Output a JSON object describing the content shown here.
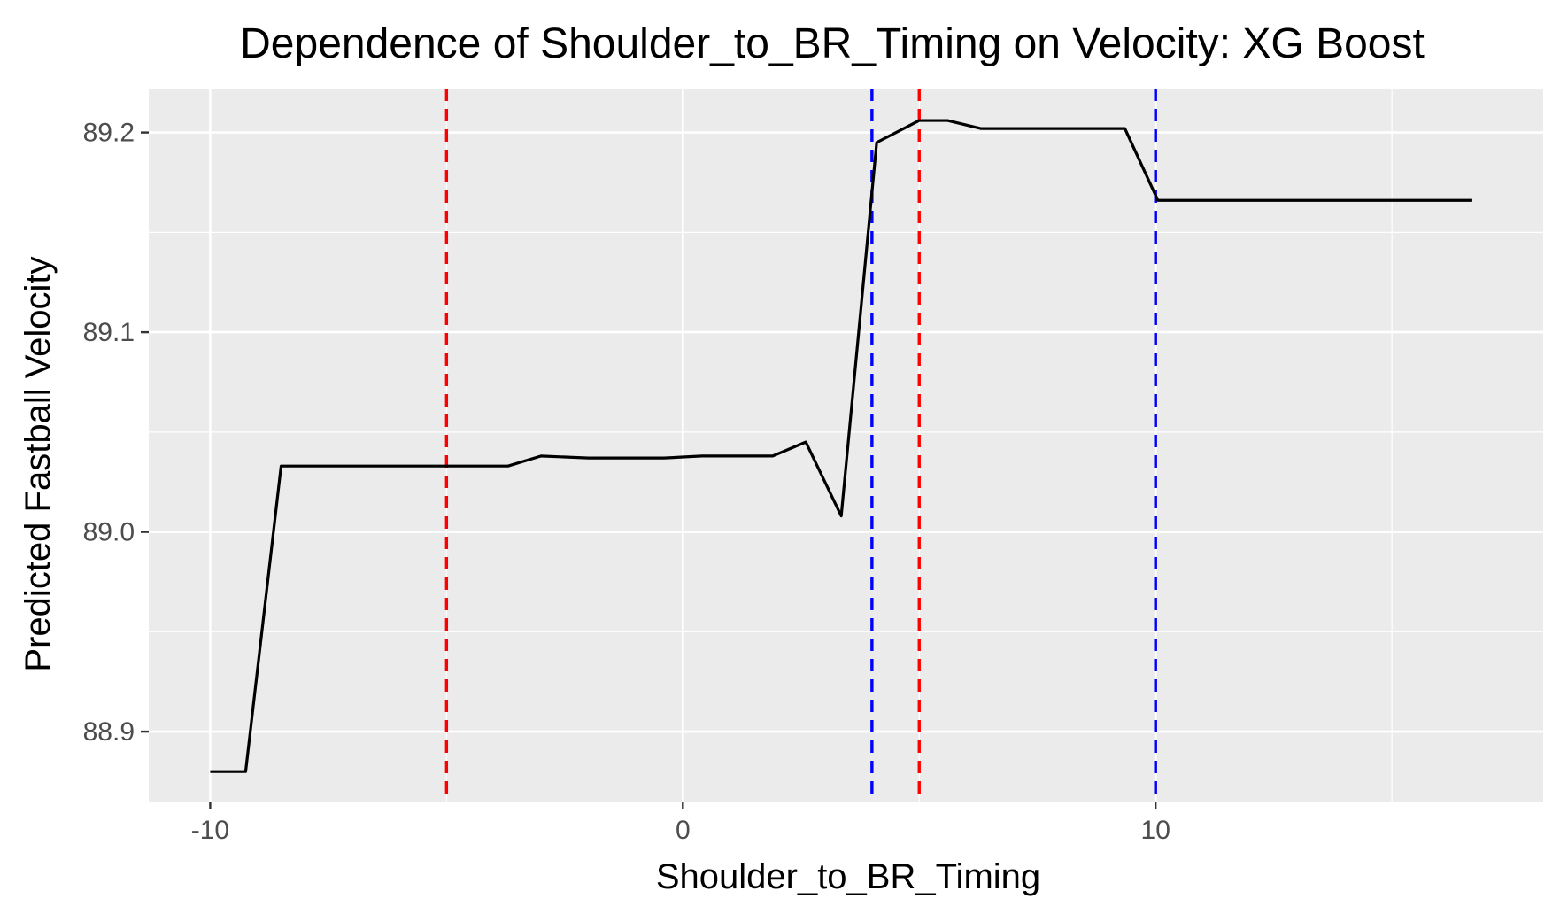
{
  "chart_data": {
    "type": "line",
    "title": "Dependence of Shoulder_to_BR_Timing on Velocity: XG Boost",
    "xlabel": "Shoulder_to_BR_Timing",
    "ylabel": "Predicted Fastball Velocity",
    "xlim": [
      -11.3,
      18.2
    ],
    "ylim": [
      88.865,
      89.222
    ],
    "x_ticks": [
      -10,
      0,
      10
    ],
    "x_tick_labels": [
      "-10",
      "0",
      "10"
    ],
    "x_minor_ticks": [
      -5,
      5,
      15
    ],
    "y_ticks": [
      88.9,
      89.0,
      89.1,
      89.2
    ],
    "y_tick_labels": [
      "88.9",
      "89.0",
      "89.1",
      "89.2"
    ],
    "y_minor_ticks": [
      88.95,
      89.05,
      89.15
    ],
    "grid": true,
    "series": [
      {
        "color": "#000000",
        "x": [
          -10,
          -9.25,
          -8.5,
          -3.7,
          -3.0,
          -2.0,
          -0.4,
          0.4,
          1.9,
          2.6,
          3.35,
          4.1,
          5.0,
          5.6,
          6.3,
          9.35,
          10.05,
          16.7
        ],
        "y": [
          88.88,
          88.88,
          89.033,
          89.033,
          89.038,
          89.037,
          89.037,
          89.038,
          89.038,
          89.045,
          89.008,
          89.195,
          89.206,
          89.206,
          89.202,
          89.202,
          89.166,
          89.166
        ]
      }
    ],
    "vlines": [
      {
        "x": -5.0,
        "color": "#ff0000"
      },
      {
        "x": 5.0,
        "color": "#ff0000"
      },
      {
        "x": 4.0,
        "color": "#0000ff"
      },
      {
        "x": 10.0,
        "color": "#0000ff"
      }
    ],
    "panel_color": "#ebebeb",
    "grid_color": "#ffffff"
  }
}
